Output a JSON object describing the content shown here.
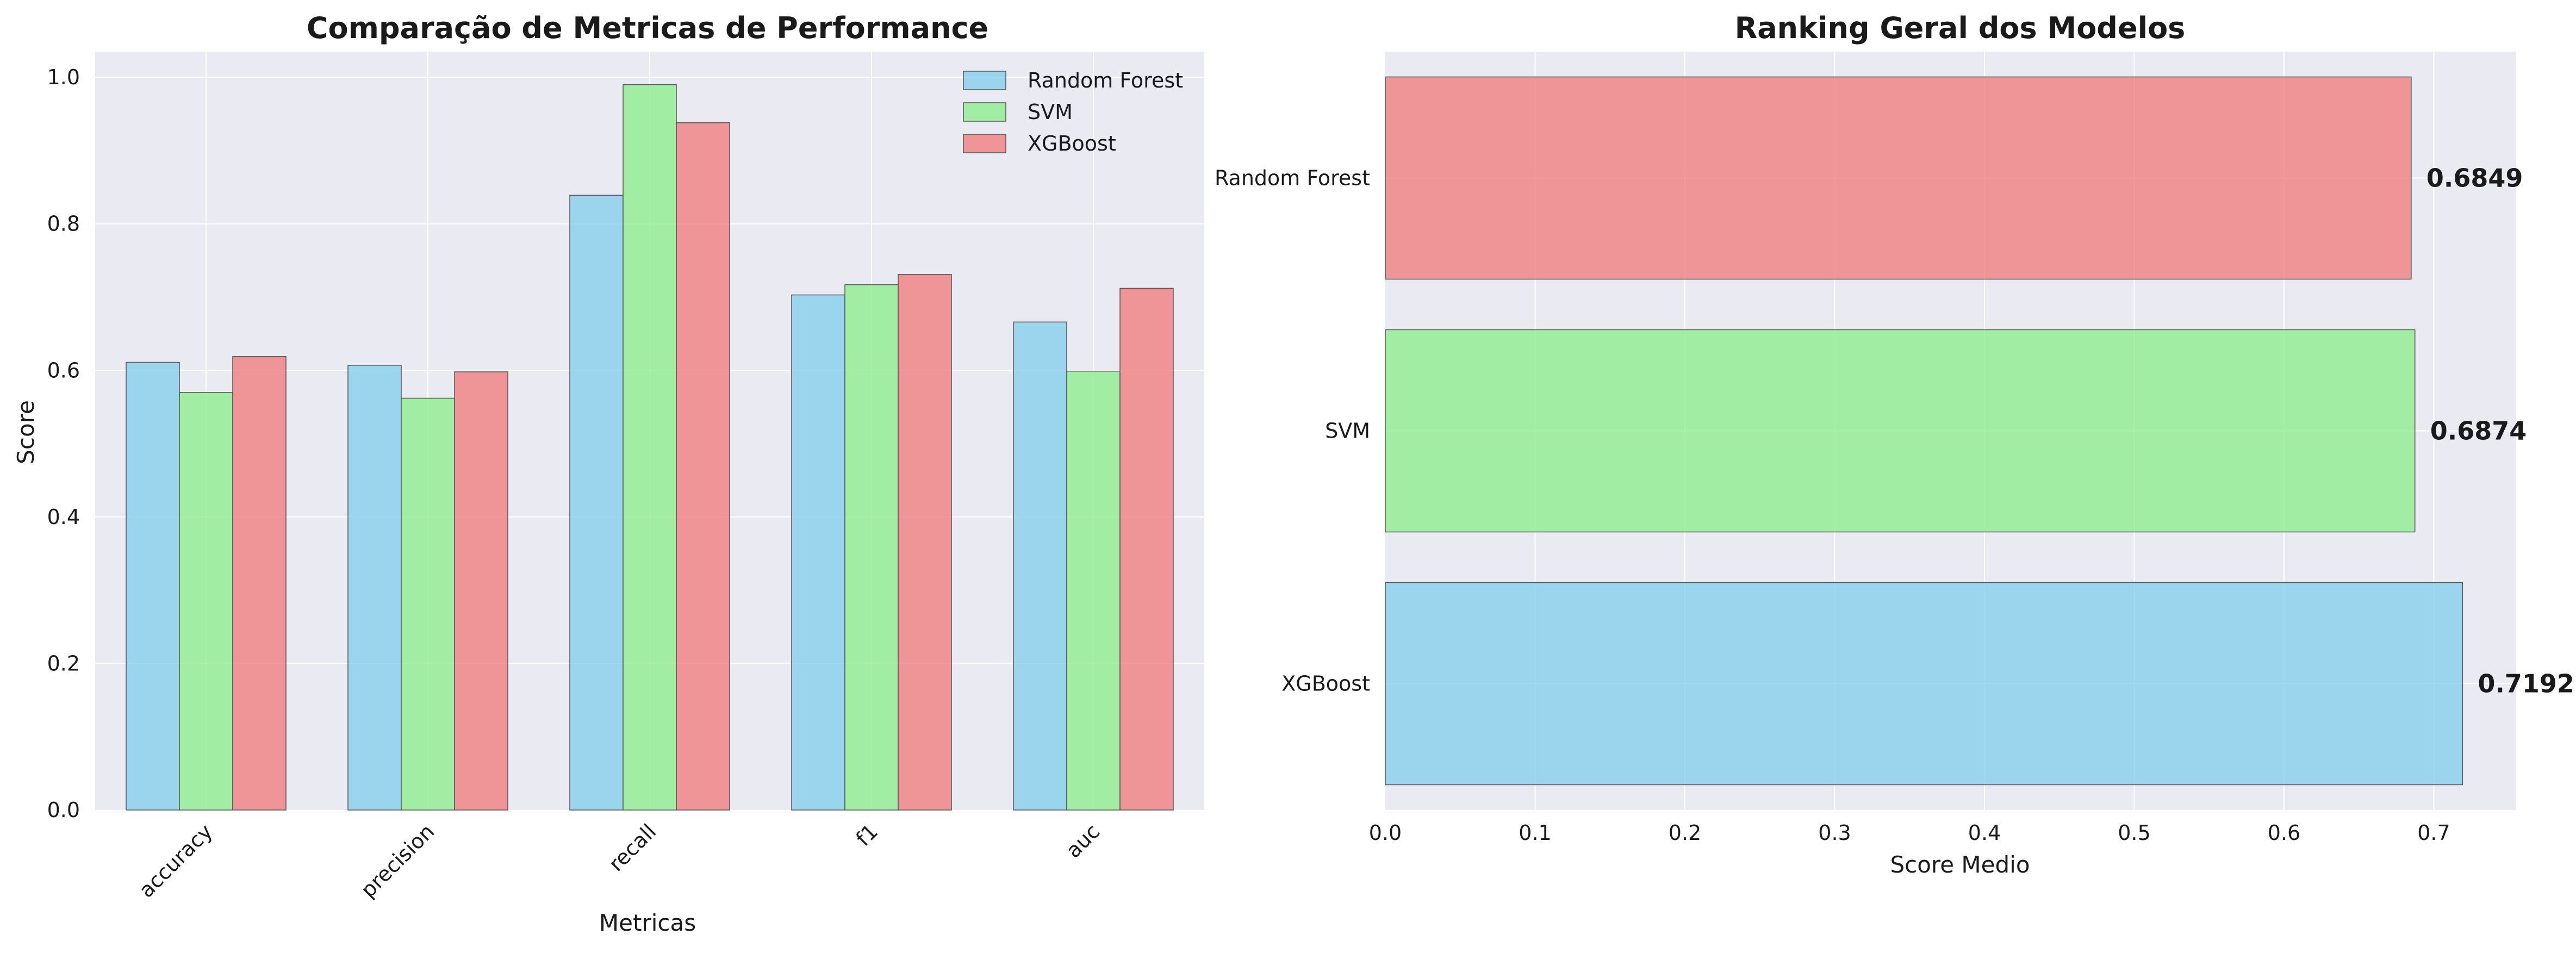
{
  "colors": {
    "background": "#ffffff",
    "axes_bg": "#eaeaf2",
    "grid": "#ffffff",
    "bar_edge": "#555555"
  },
  "chart_data": [
    {
      "type": "bar",
      "title": "Comparação de Metricas de Performance",
      "xlabel": "Metricas",
      "ylabel": "Score",
      "categories": [
        "accuracy",
        "precision",
        "recall",
        "f1",
        "auc"
      ],
      "ylim": [
        0,
        1.035
      ],
      "yticks": [
        "0.0",
        "0.2",
        "0.4",
        "0.6",
        "0.8",
        "1.0"
      ],
      "ytick_values": [
        0,
        0.2,
        0.4,
        0.6,
        0.8,
        1.0
      ],
      "grid": true,
      "legend_position": "top-right",
      "series": [
        {
          "name": "Random Forest",
          "color": "#87ceeb",
          "values": [
            0.611,
            0.607,
            0.839,
            0.703,
            0.666
          ]
        },
        {
          "name": "SVM",
          "color": "#90ee90",
          "values": [
            0.57,
            0.562,
            0.99,
            0.717,
            0.599
          ]
        },
        {
          "name": "XGBoost",
          "color": "#f08080",
          "values": [
            0.619,
            0.598,
            0.938,
            0.731,
            0.712
          ]
        }
      ]
    },
    {
      "type": "bar",
      "orientation": "horizontal",
      "title": "Ranking Geral dos Modelos",
      "xlabel": "Score Medio",
      "ylabel": "",
      "categories": [
        "Random Forest",
        "SVM",
        "XGBoost"
      ],
      "values": [
        0.6849,
        0.6874,
        0.7192
      ],
      "value_labels": [
        "0.6849",
        "0.6874",
        "0.7192"
      ],
      "colors": [
        "#f08080",
        "#90ee90",
        "#87ceeb"
      ],
      "xlim": [
        0,
        0.755
      ],
      "xticks": [
        "0.0",
        "0.1",
        "0.2",
        "0.3",
        "0.4",
        "0.5",
        "0.6",
        "0.7"
      ],
      "xtick_values": [
        0,
        0.1,
        0.2,
        0.3,
        0.4,
        0.5,
        0.6,
        0.7
      ],
      "grid": true
    }
  ]
}
